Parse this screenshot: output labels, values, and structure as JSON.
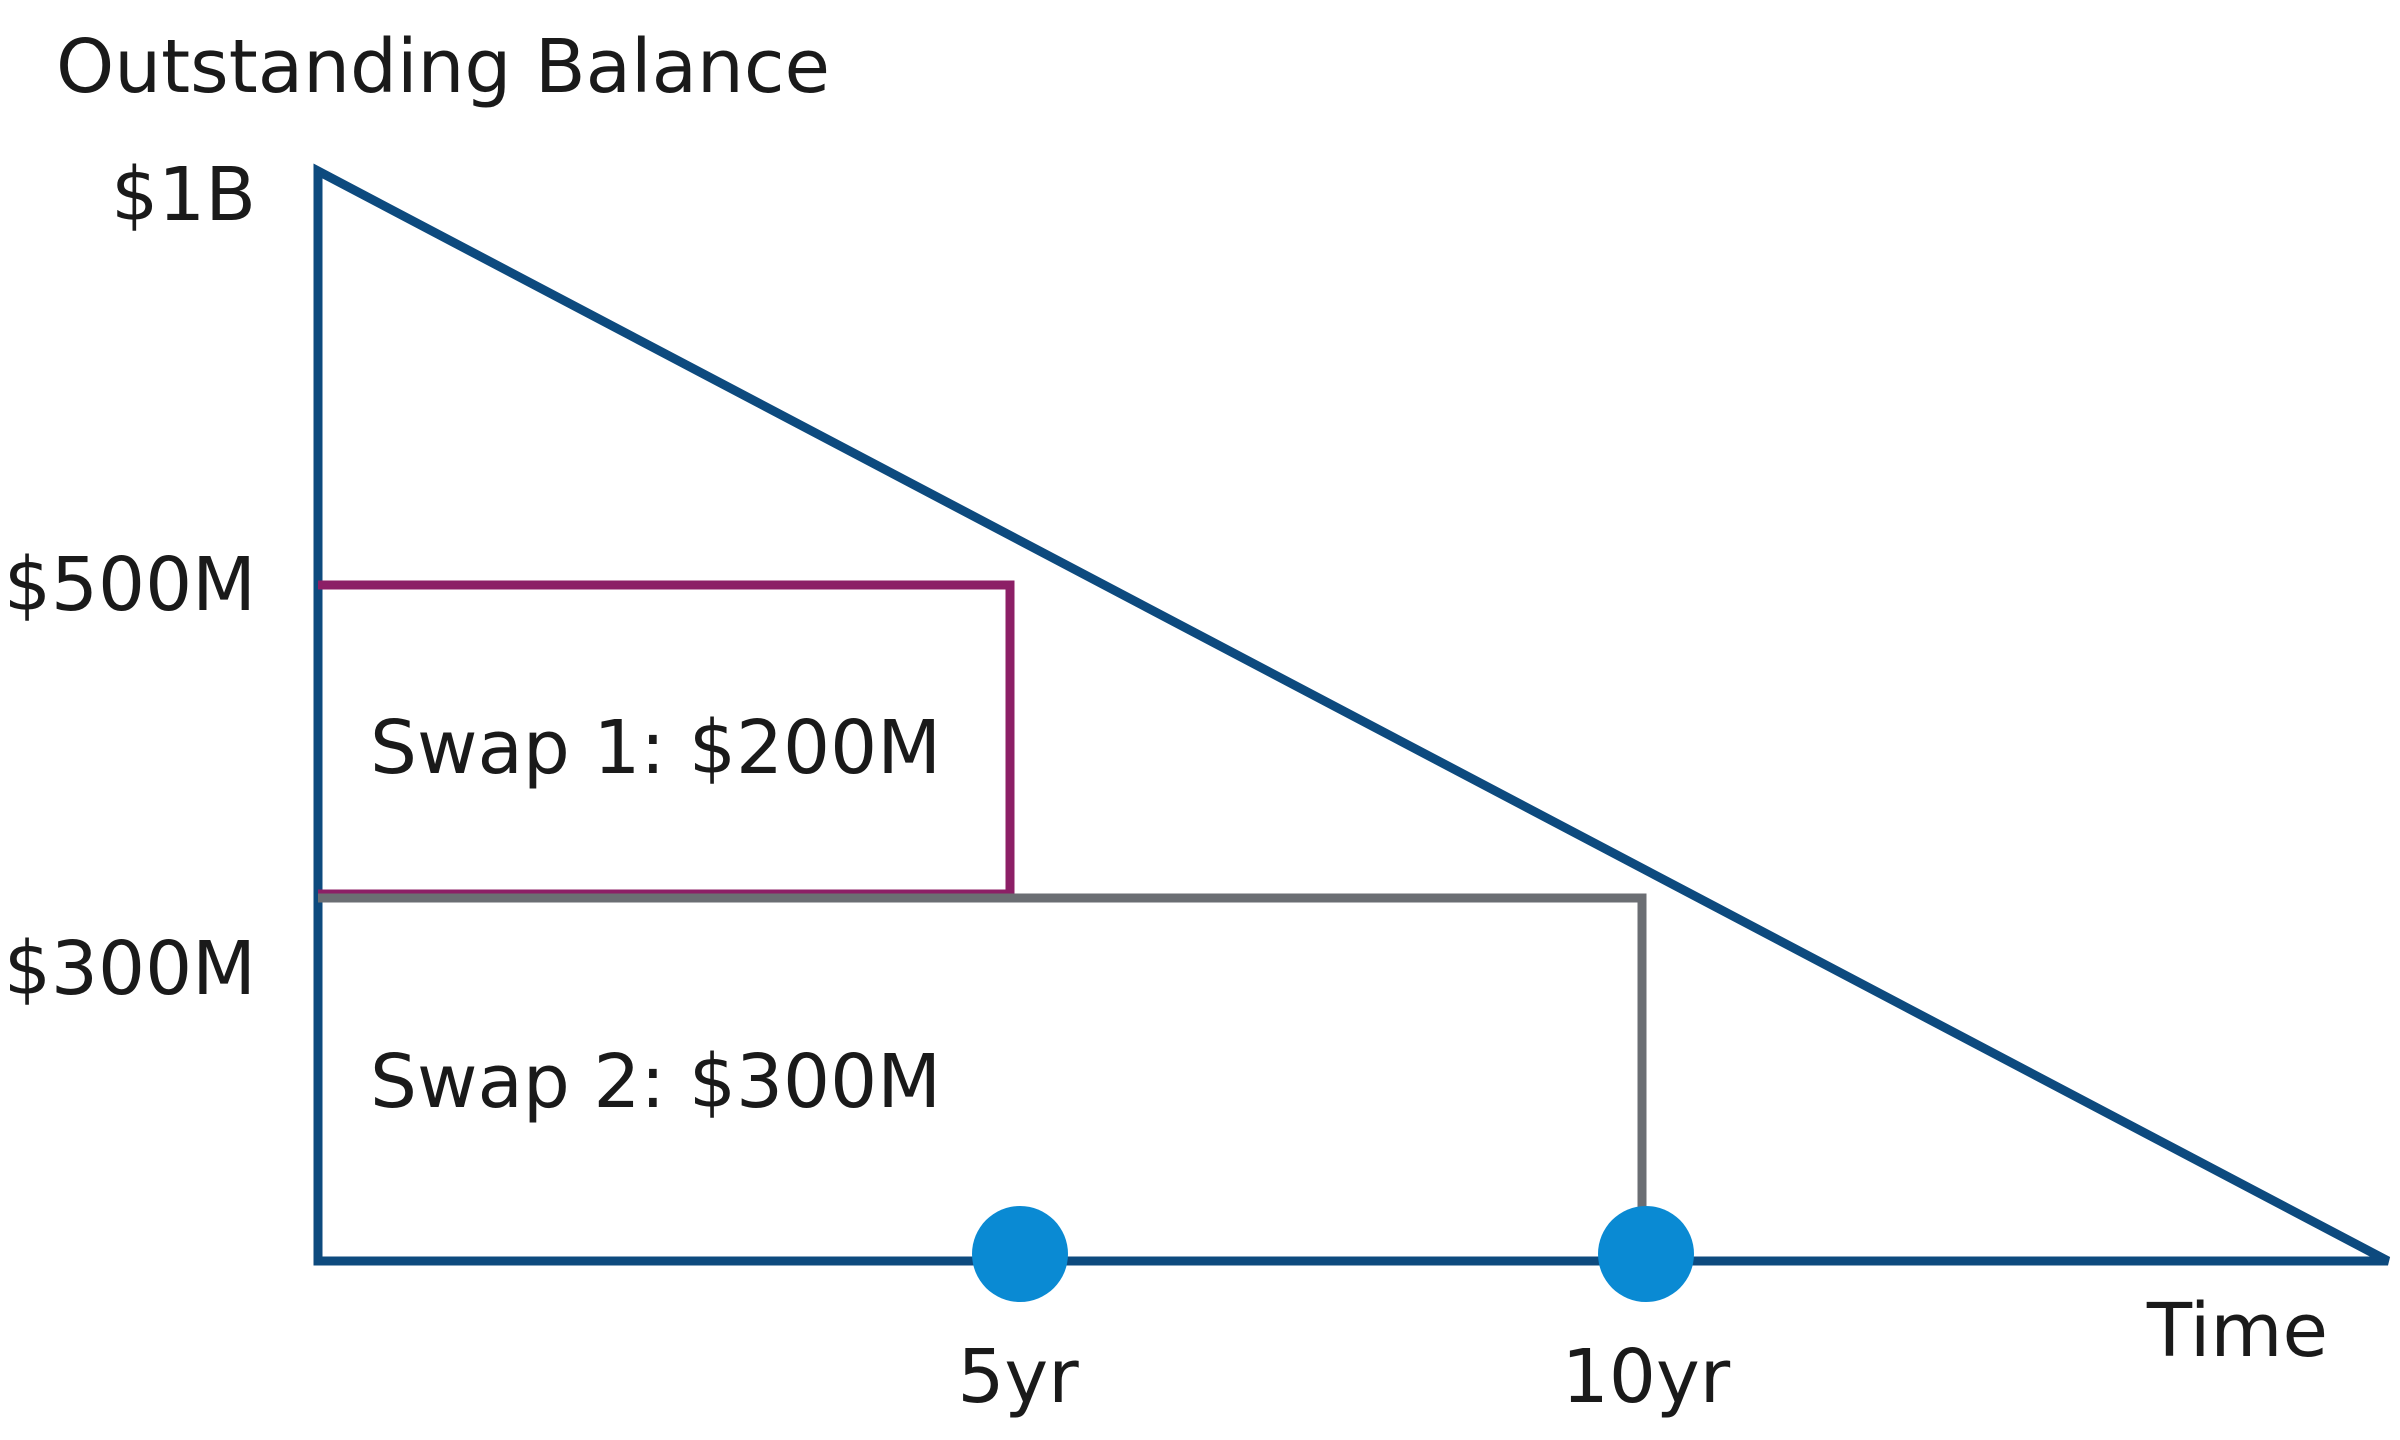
{
  "diagram": {
    "y_axis_title": "Outstanding Balance",
    "x_axis_title": "Time",
    "y_ticks": [
      "$1B",
      "$500M",
      "$300M"
    ],
    "x_ticks": [
      "5yr",
      "10yr"
    ],
    "swap1": {
      "label": "Swap 1: $200M",
      "notional_musd": 200,
      "lower_bound_musd": 300,
      "upper_bound_musd": 500,
      "tenor_years": 5
    },
    "swap2": {
      "label": "Swap 2: $300M",
      "notional_musd": 300,
      "lower_bound_musd": 0,
      "upper_bound_musd": 300,
      "tenor_years": 10
    },
    "amortizing_balance": {
      "start_musd": 1000,
      "end_musd": 0
    }
  },
  "colors": {
    "axis_and_balance": "#0d4a7e",
    "swap1": "#8c1f66",
    "swap2": "#6b6e73",
    "maturity_marker": "#0a8ad3",
    "text": "#1a1a1a"
  }
}
